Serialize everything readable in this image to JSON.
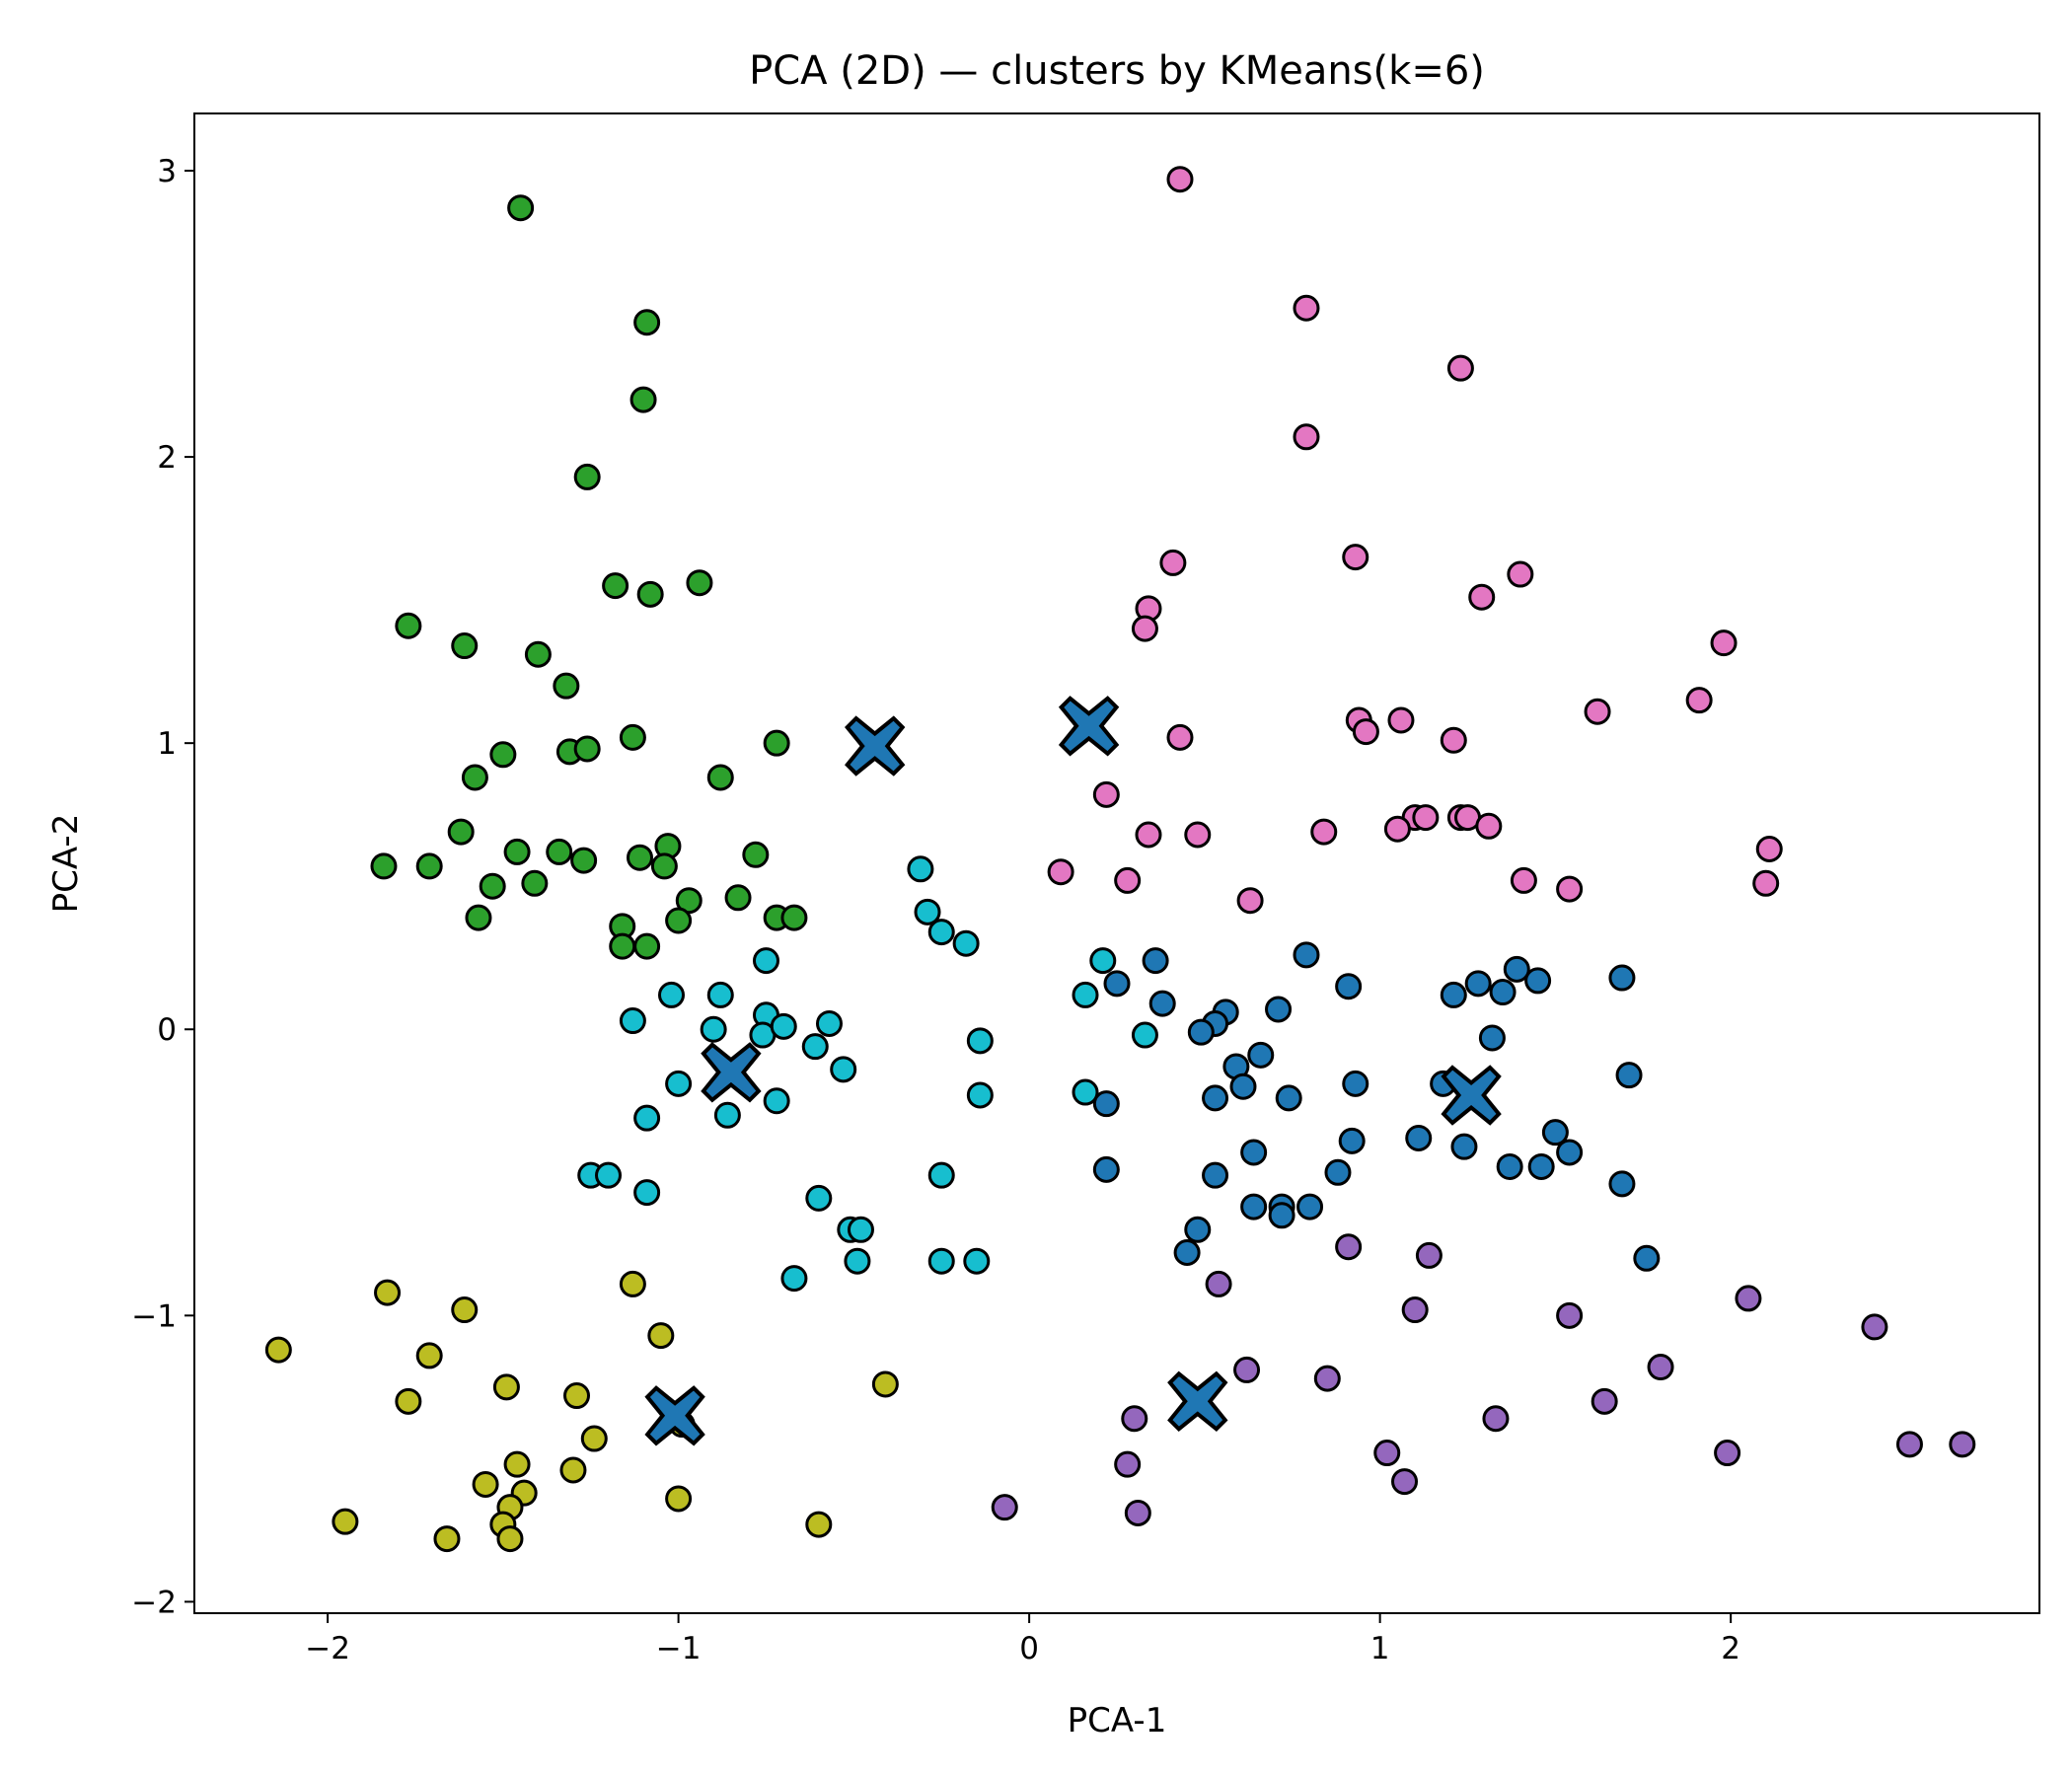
{
  "chart_data": {
    "type": "scatter",
    "title": "PCA (2D) — clusters by KMeans(k=6)",
    "xlabel": "PCA-1",
    "ylabel": "PCA-2",
    "xlim": [
      -2.38,
      2.88
    ],
    "ylim": [
      -2.04,
      3.2
    ],
    "xticks": [
      -2,
      -1,
      0,
      1,
      2
    ],
    "xtick_labels": [
      "−2",
      "−1",
      "0",
      "1",
      "2"
    ],
    "yticks": [
      -2,
      -1,
      0,
      1,
      2,
      3
    ],
    "ytick_labels": [
      "−2",
      "−1",
      "0",
      "1",
      "2",
      "3"
    ],
    "grid": false,
    "legend": "none",
    "series": [
      {
        "color": "#2ca02c",
        "points": [
          [
            -1.45,
            2.87
          ],
          [
            -1.09,
            2.47
          ],
          [
            -1.1,
            2.2
          ],
          [
            -1.26,
            1.93
          ],
          [
            -1.18,
            1.55
          ],
          [
            -0.94,
            1.56
          ],
          [
            -1.08,
            1.52
          ],
          [
            -1.77,
            1.41
          ],
          [
            -1.61,
            1.34
          ],
          [
            -1.4,
            1.31
          ],
          [
            -1.32,
            1.2
          ],
          [
            -1.13,
            1.02
          ],
          [
            -1.5,
            0.96
          ],
          [
            -1.31,
            0.97
          ],
          [
            -1.26,
            0.98
          ],
          [
            -0.88,
            0.88
          ],
          [
            -0.72,
            1.0
          ],
          [
            -1.58,
            0.88
          ],
          [
            -1.62,
            0.69
          ],
          [
            -1.84,
            0.57
          ],
          [
            -1.71,
            0.57
          ],
          [
            -1.46,
            0.62
          ],
          [
            -1.34,
            0.62
          ],
          [
            -1.27,
            0.59
          ],
          [
            -1.11,
            0.6
          ],
          [
            -1.03,
            0.64
          ],
          [
            -0.78,
            0.61
          ],
          [
            -1.53,
            0.5
          ],
          [
            -1.41,
            0.51
          ],
          [
            -1.04,
            0.57
          ],
          [
            -0.97,
            0.45
          ],
          [
            -0.83,
            0.46
          ],
          [
            -1.57,
            0.39
          ],
          [
            -1.0,
            0.38
          ],
          [
            -0.72,
            0.39
          ],
          [
            -0.67,
            0.39
          ],
          [
            -1.16,
            0.36
          ],
          [
            -1.16,
            0.29
          ],
          [
            -1.09,
            0.29
          ]
        ]
      },
      {
        "color": "#17becf",
        "points": [
          [
            -0.31,
            0.56
          ],
          [
            -0.29,
            0.41
          ],
          [
            -0.25,
            0.34
          ],
          [
            -0.18,
            0.3
          ],
          [
            -0.75,
            0.24
          ],
          [
            -1.02,
            0.12
          ],
          [
            -0.88,
            0.12
          ],
          [
            -1.13,
            0.03
          ],
          [
            -0.75,
            0.05
          ],
          [
            -0.76,
            -0.02
          ],
          [
            -0.7,
            0.01
          ],
          [
            -0.57,
            0.02
          ],
          [
            -0.9,
            0.0
          ],
          [
            -0.14,
            -0.04
          ],
          [
            -0.61,
            -0.06
          ],
          [
            -0.53,
            -0.14
          ],
          [
            -1.0,
            -0.19
          ],
          [
            -0.72,
            -0.25
          ],
          [
            -0.14,
            -0.23
          ],
          [
            -1.09,
            -0.31
          ],
          [
            -0.86,
            -0.3
          ],
          [
            -1.25,
            -0.51
          ],
          [
            -1.2,
            -0.51
          ],
          [
            -1.09,
            -0.57
          ],
          [
            -0.6,
            -0.59
          ],
          [
            -0.25,
            -0.51
          ],
          [
            -0.51,
            -0.7
          ],
          [
            -0.48,
            -0.7
          ],
          [
            -0.49,
            -0.81
          ],
          [
            -0.25,
            -0.81
          ],
          [
            -0.15,
            -0.81
          ],
          [
            -0.67,
            -0.87
          ],
          [
            0.16,
            0.12
          ],
          [
            0.21,
            0.24
          ],
          [
            0.16,
            -0.22
          ],
          [
            0.33,
            -0.02
          ]
        ]
      },
      {
        "color": "#1f77b4",
        "points": [
          [
            0.25,
            0.16
          ],
          [
            0.36,
            0.24
          ],
          [
            0.38,
            0.09
          ],
          [
            0.79,
            0.26
          ],
          [
            0.91,
            0.15
          ],
          [
            1.21,
            0.12
          ],
          [
            1.28,
            0.16
          ],
          [
            1.35,
            0.13
          ],
          [
            1.39,
            0.21
          ],
          [
            1.45,
            0.17
          ],
          [
            1.69,
            0.18
          ],
          [
            0.56,
            0.06
          ],
          [
            0.53,
            0.02
          ],
          [
            0.49,
            -0.01
          ],
          [
            0.71,
            0.07
          ],
          [
            1.32,
            -0.03
          ],
          [
            0.66,
            -0.09
          ],
          [
            0.59,
            -0.13
          ],
          [
            0.93,
            -0.19
          ],
          [
            1.71,
            -0.16
          ],
          [
            0.22,
            -0.26
          ],
          [
            0.53,
            -0.24
          ],
          [
            0.61,
            -0.2
          ],
          [
            0.74,
            -0.24
          ],
          [
            1.18,
            -0.19
          ],
          [
            0.92,
            -0.39
          ],
          [
            1.11,
            -0.38
          ],
          [
            1.5,
            -0.36
          ],
          [
            1.24,
            -0.41
          ],
          [
            1.54,
            -0.43
          ],
          [
            0.64,
            -0.43
          ],
          [
            0.22,
            -0.49
          ],
          [
            0.53,
            -0.51
          ],
          [
            0.88,
            -0.5
          ],
          [
            1.37,
            -0.48
          ],
          [
            1.46,
            -0.48
          ],
          [
            1.69,
            -0.54
          ],
          [
            0.64,
            -0.62
          ],
          [
            0.72,
            -0.62
          ],
          [
            0.72,
            -0.65
          ],
          [
            0.8,
            -0.62
          ],
          [
            0.48,
            -0.7
          ],
          [
            0.45,
            -0.78
          ],
          [
            1.76,
            -0.8
          ]
        ]
      },
      {
        "color": "#e377c2",
        "points": [
          [
            0.43,
            2.97
          ],
          [
            0.79,
            2.52
          ],
          [
            1.23,
            2.31
          ],
          [
            0.79,
            2.07
          ],
          [
            0.41,
            1.63
          ],
          [
            0.93,
            1.65
          ],
          [
            1.4,
            1.59
          ],
          [
            1.29,
            1.51
          ],
          [
            0.34,
            1.47
          ],
          [
            0.33,
            1.4
          ],
          [
            1.98,
            1.35
          ],
          [
            0.94,
            1.08
          ],
          [
            1.06,
            1.08
          ],
          [
            0.96,
            1.04
          ],
          [
            0.43,
            1.02
          ],
          [
            1.62,
            1.11
          ],
          [
            1.91,
            1.15
          ],
          [
            1.21,
            1.01
          ],
          [
            0.22,
            0.82
          ],
          [
            1.1,
            0.74
          ],
          [
            1.13,
            0.74
          ],
          [
            1.23,
            0.74
          ],
          [
            1.25,
            0.74
          ],
          [
            1.31,
            0.71
          ],
          [
            1.05,
            0.7
          ],
          [
            0.84,
            0.69
          ],
          [
            0.34,
            0.68
          ],
          [
            0.48,
            0.68
          ],
          [
            2.11,
            0.63
          ],
          [
            0.09,
            0.55
          ],
          [
            0.28,
            0.52
          ],
          [
            1.41,
            0.52
          ],
          [
            1.54,
            0.49
          ],
          [
            2.1,
            0.51
          ],
          [
            0.63,
            0.45
          ]
        ]
      },
      {
        "color": "#9467bd",
        "points": [
          [
            0.91,
            -0.76
          ],
          [
            1.14,
            -0.79
          ],
          [
            0.54,
            -0.89
          ],
          [
            1.1,
            -0.98
          ],
          [
            2.05,
            -0.94
          ],
          [
            1.54,
            -1.0
          ],
          [
            2.41,
            -1.04
          ],
          [
            0.62,
            -1.19
          ],
          [
            0.85,
            -1.22
          ],
          [
            1.8,
            -1.18
          ],
          [
            1.64,
            -1.3
          ],
          [
            0.3,
            -1.36
          ],
          [
            1.33,
            -1.36
          ],
          [
            0.28,
            -1.52
          ],
          [
            1.02,
            -1.48
          ],
          [
            1.07,
            -1.58
          ],
          [
            1.99,
            -1.48
          ],
          [
            2.51,
            -1.45
          ],
          [
            2.66,
            -1.45
          ],
          [
            -0.07,
            -1.67
          ],
          [
            0.31,
            -1.69
          ]
        ]
      },
      {
        "color": "#bcbd22",
        "points": [
          [
            -2.14,
            -1.12
          ],
          [
            -1.83,
            -0.92
          ],
          [
            -1.61,
            -0.98
          ],
          [
            -1.71,
            -1.14
          ],
          [
            -1.77,
            -1.3
          ],
          [
            -1.49,
            -1.25
          ],
          [
            -1.29,
            -1.28
          ],
          [
            -1.24,
            -1.43
          ],
          [
            -1.46,
            -1.52
          ],
          [
            -1.3,
            -1.54
          ],
          [
            -1.55,
            -1.59
          ],
          [
            -1.44,
            -1.62
          ],
          [
            -1.48,
            -1.67
          ],
          [
            -1.5,
            -1.73
          ],
          [
            -1.48,
            -1.78
          ],
          [
            -1.66,
            -1.78
          ],
          [
            -1.95,
            -1.72
          ],
          [
            -1.13,
            -0.89
          ],
          [
            -1.05,
            -1.07
          ],
          [
            -0.99,
            -1.38
          ],
          [
            -1.0,
            -1.64
          ],
          [
            -0.6,
            -1.73
          ],
          [
            -0.41,
            -1.24
          ]
        ]
      }
    ],
    "centroids": {
      "color": "#1f77b4",
      "marker": "X",
      "points": [
        [
          -0.44,
          0.99
        ],
        [
          0.17,
          1.06
        ],
        [
          -0.85,
          -0.15
        ],
        [
          1.26,
          -0.23
        ],
        [
          0.48,
          -1.3
        ],
        [
          -1.01,
          -1.35
        ]
      ]
    }
  }
}
